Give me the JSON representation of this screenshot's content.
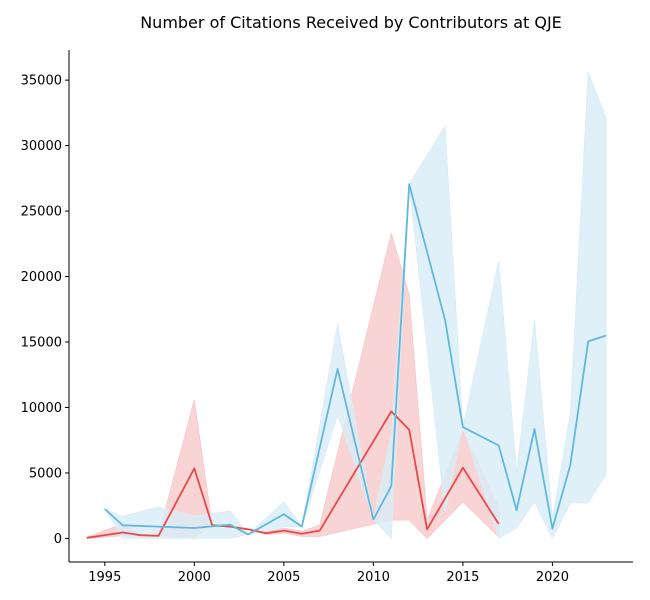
{
  "chart_data": {
    "type": "line",
    "title": "Number of Citations Received by Contributors at QJE",
    "xlabel": "",
    "ylabel": "",
    "xlim": [
      1993,
      2024.5
    ],
    "ylim": [
      -1800,
      37300
    ],
    "x_ticks": [
      1995,
      2000,
      2005,
      2010,
      2015,
      2020
    ],
    "y_ticks": [
      0,
      5000,
      10000,
      15000,
      20000,
      25000,
      30000,
      35000
    ],
    "grid": false,
    "legend": "none",
    "series": [
      {
        "color": "#e84a4a",
        "band_color": "#f8c9c9",
        "x": [
          1994,
          1996,
          1997,
          1998,
          2000,
          2001,
          2002,
          2003,
          2004,
          2005,
          2006,
          2007,
          2011,
          2012,
          2013,
          2015,
          2017
        ],
        "values": [
          50,
          450,
          250,
          200,
          5350,
          1000,
          900,
          700,
          400,
          600,
          350,
          600,
          9700,
          8300,
          700,
          5400,
          1100
        ],
        "lower": [
          0,
          200,
          250,
          200,
          100,
          1000,
          900,
          700,
          300,
          400,
          150,
          150,
          1400,
          1400,
          0,
          2800,
          100
        ],
        "upper": [
          100,
          1100,
          250,
          200,
          10600,
          1000,
          900,
          700,
          500,
          800,
          550,
          1000,
          23300,
          18600,
          1400,
          8200,
          2400
        ]
      },
      {
        "color": "#62b7dc",
        "band_color": "#d8ecf6",
        "x": [
          1995,
          1996,
          1998,
          2000,
          2002,
          2003,
          2005,
          2006,
          2008,
          2010,
          2011,
          2012,
          2014,
          2015,
          2017,
          2018,
          2019,
          2020,
          2021,
          2022,
          2023
        ],
        "values": [
          2250,
          1000,
          900,
          800,
          1050,
          300,
          1850,
          900,
          12950,
          1450,
          4000,
          27050,
          16700,
          8500,
          7100,
          2150,
          8350,
          750,
          5600,
          15050,
          15500
        ],
        "lower": [
          2250,
          0,
          0,
          0,
          0,
          300,
          900,
          900,
          9400,
          1450,
          0,
          27050,
          2000,
          8500,
          0,
          800,
          2800,
          0,
          2700,
          2700,
          4900
        ],
        "upper": [
          2250,
          1700,
          2400,
          1700,
          2100,
          300,
          2800,
          900,
          16400,
          1450,
          8000,
          27050,
          31500,
          8500,
          21200,
          5000,
          16700,
          1500,
          9500,
          35600,
          32100
        ]
      }
    ]
  }
}
